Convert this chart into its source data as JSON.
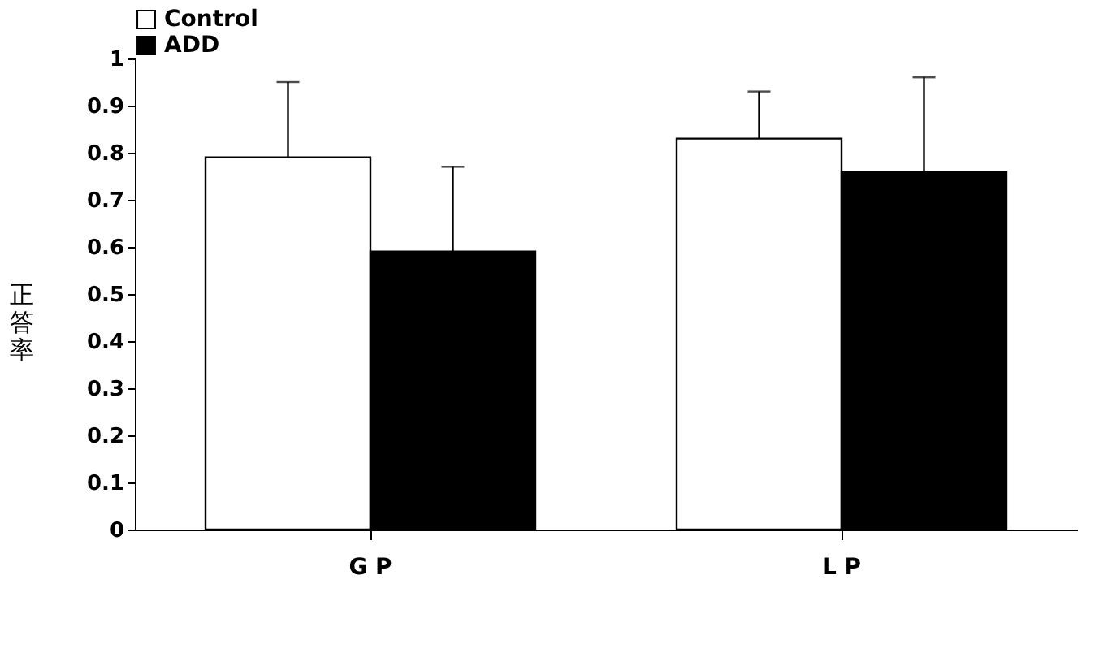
{
  "chart_data": {
    "type": "bar",
    "ylabel": "正答率",
    "categories": [
      "G P",
      "L P"
    ],
    "series": [
      {
        "name": "Control",
        "color": "#ffffff",
        "values": [
          0.79,
          0.83
        ],
        "errors": [
          [
            0.79,
            0.95
          ],
          [
            0.83,
            0.93
          ]
        ]
      },
      {
        "name": "ADD",
        "color": "#000000",
        "values": [
          0.59,
          0.76
        ],
        "errors": [
          [
            0.59,
            0.77
          ],
          [
            0.76,
            0.96
          ]
        ]
      }
    ],
    "ylim": [
      0,
      1
    ],
    "yticks": [
      0,
      0.1,
      0.2,
      0.3,
      0.4,
      0.5,
      0.6,
      0.7,
      0.8,
      0.9,
      1
    ],
    "grid": false,
    "legend": "top"
  }
}
